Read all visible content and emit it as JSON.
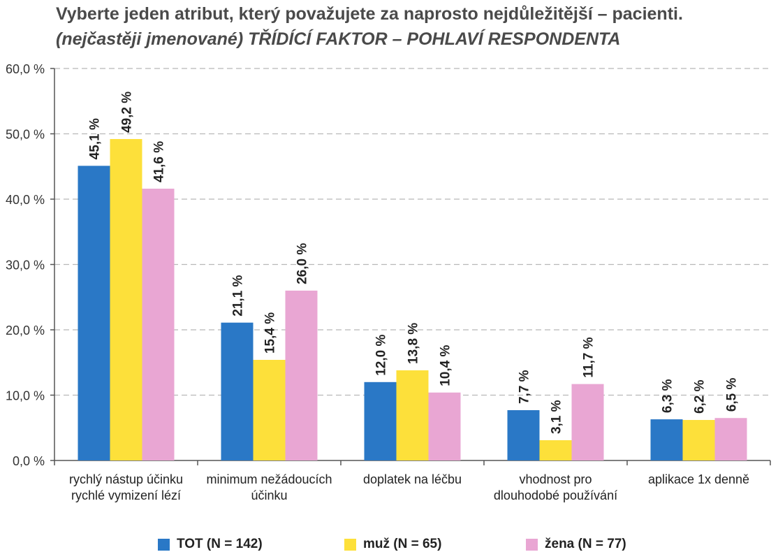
{
  "chart_data": {
    "type": "bar",
    "title": "Vyberte jeden atribut, který považujete za naprosto nejdůležitější – pacienti.",
    "subtitle": "(nejčastěji jmenované) TŘÍDÍCÍ FAKTOR – POHLAVÍ RESPONDENTA",
    "categories": [
      [
        "rychlý nástup účinku",
        "rychlé vymizení lézí"
      ],
      [
        "minimum nežádoucích",
        "účinku"
      ],
      [
        "doplatek na léčbu"
      ],
      [
        "vhodnost pro",
        "dlouhodobé používání"
      ],
      [
        "aplikace 1x denně"
      ]
    ],
    "series": [
      {
        "name": "TOT (N = 142)",
        "color": "#2a78c6",
        "values": [
          45.1,
          21.1,
          12.0,
          7.7,
          6.3
        ],
        "labels": [
          "45,1 %",
          "21,1 %",
          "12,0 %",
          "7,7 %",
          "6,3 %"
        ]
      },
      {
        "name": "muž (N = 65)",
        "color": "#fde03a",
        "values": [
          49.2,
          15.4,
          13.8,
          3.1,
          6.2
        ],
        "labels": [
          "49,2 %",
          "15,4 %",
          "13,8 %",
          "3,1 %",
          "6,2 %"
        ]
      },
      {
        "name": "žena (N = 77)",
        "color": "#e9a6d3",
        "values": [
          41.6,
          26.0,
          10.4,
          11.7,
          6.5
        ],
        "labels": [
          "41,6 %",
          "26,0 %",
          "10,4 %",
          "11,7 %",
          "6,5 %"
        ]
      }
    ],
    "ylim": [
      0,
      60
    ],
    "yticks": [
      0,
      10,
      20,
      30,
      40,
      50,
      60
    ],
    "ytick_labels": [
      "0,0 %",
      "10,0 %",
      "20,0 %",
      "30,0 %",
      "40,0 %",
      "50,0 %",
      "60,0 %"
    ],
    "grid": true,
    "legend_position": "bottom"
  }
}
